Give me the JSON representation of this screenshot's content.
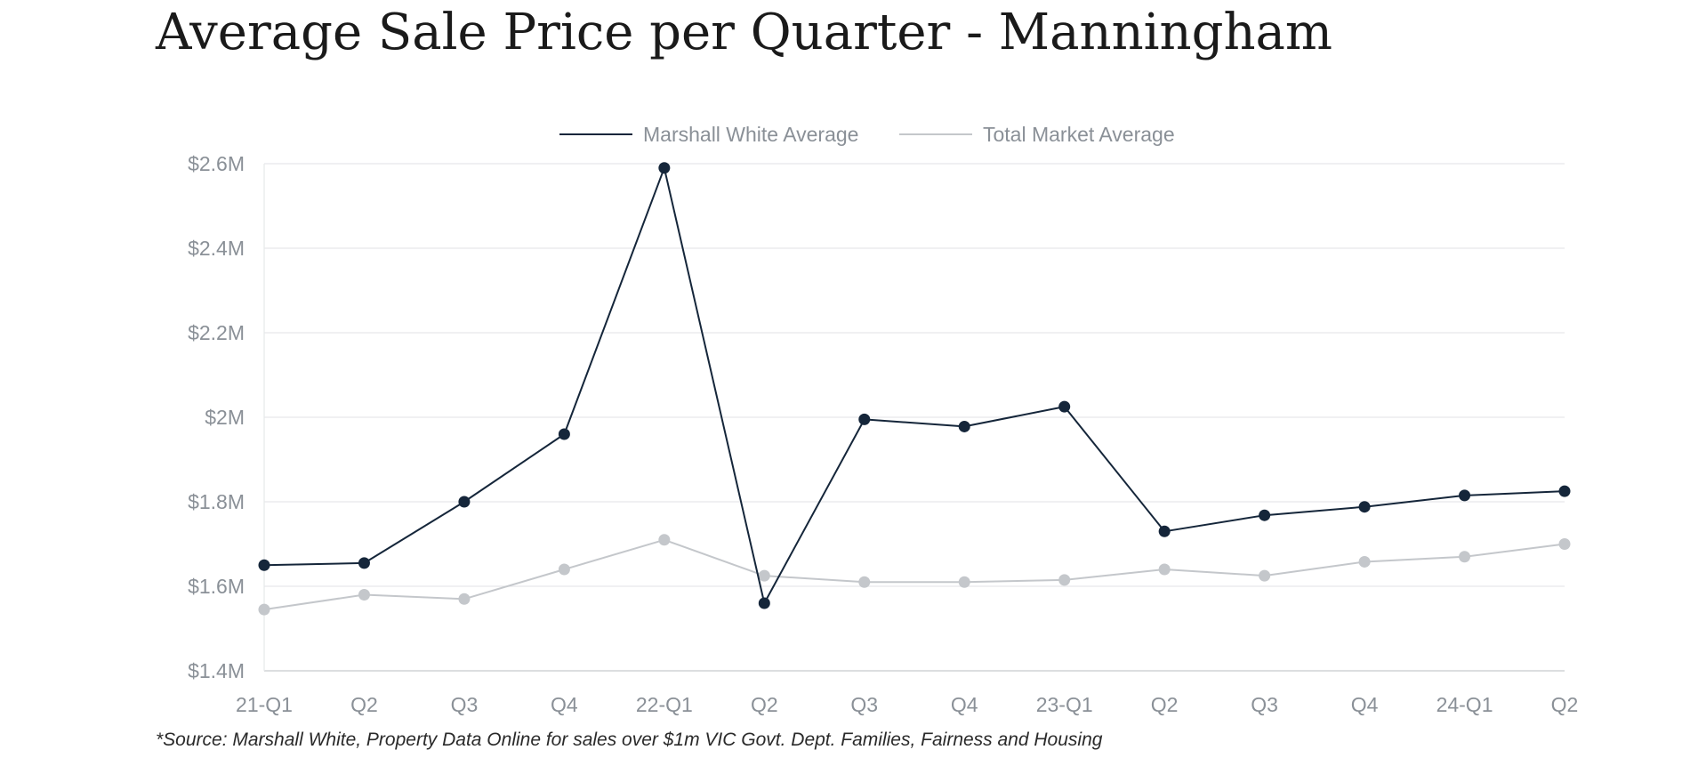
{
  "title": "Average Sale Price per Quarter - Manningham",
  "source_note": "*Source: Marshall White, Property Data Online for sales over $1m VIC Govt. Dept. Families, Fairness and Housing",
  "colors": {
    "marshall_white": "#15263a",
    "total_market": "#c4c7cb",
    "grid": "#e6e8ea",
    "axis": "#d0d3d6",
    "tick_text": "#8a9097"
  },
  "chart_data": {
    "type": "line",
    "title": "Average Sale Price per Quarter - Manningham",
    "categories": [
      "21-Q1",
      "Q2",
      "Q3",
      "Q4",
      "22-Q1",
      "Q2",
      "Q3",
      "Q4",
      "23-Q1",
      "Q2",
      "Q3",
      "Q4",
      "24-Q1",
      "Q2"
    ],
    "series": [
      {
        "name": "Marshall White Average",
        "values": [
          1650000,
          1655000,
          1800000,
          1960000,
          2590000,
          1560000,
          1995000,
          1978000,
          2025000,
          1730000,
          1768000,
          1788000,
          1815000,
          1825000
        ]
      },
      {
        "name": "Total Market Average",
        "values": [
          1545000,
          1580000,
          1570000,
          1640000,
          1710000,
          1625000,
          1610000,
          1610000,
          1615000,
          1640000,
          1625000,
          1658000,
          1670000,
          1700000
        ]
      }
    ],
    "ylim": [
      1400000,
      2600000
    ],
    "yticks": [
      {
        "value": 1400000,
        "label": "$1.4M"
      },
      {
        "value": 1600000,
        "label": "$1.6M"
      },
      {
        "value": 1800000,
        "label": "$1.8M"
      },
      {
        "value": 2000000,
        "label": "$2M"
      },
      {
        "value": 2200000,
        "label": "$2.2M"
      },
      {
        "value": 2400000,
        "label": "$2.4M"
      },
      {
        "value": 2600000,
        "label": "$2.6M"
      }
    ],
    "xlabel": "",
    "ylabel": "",
    "grid": true,
    "legend_position": "top-center"
  }
}
